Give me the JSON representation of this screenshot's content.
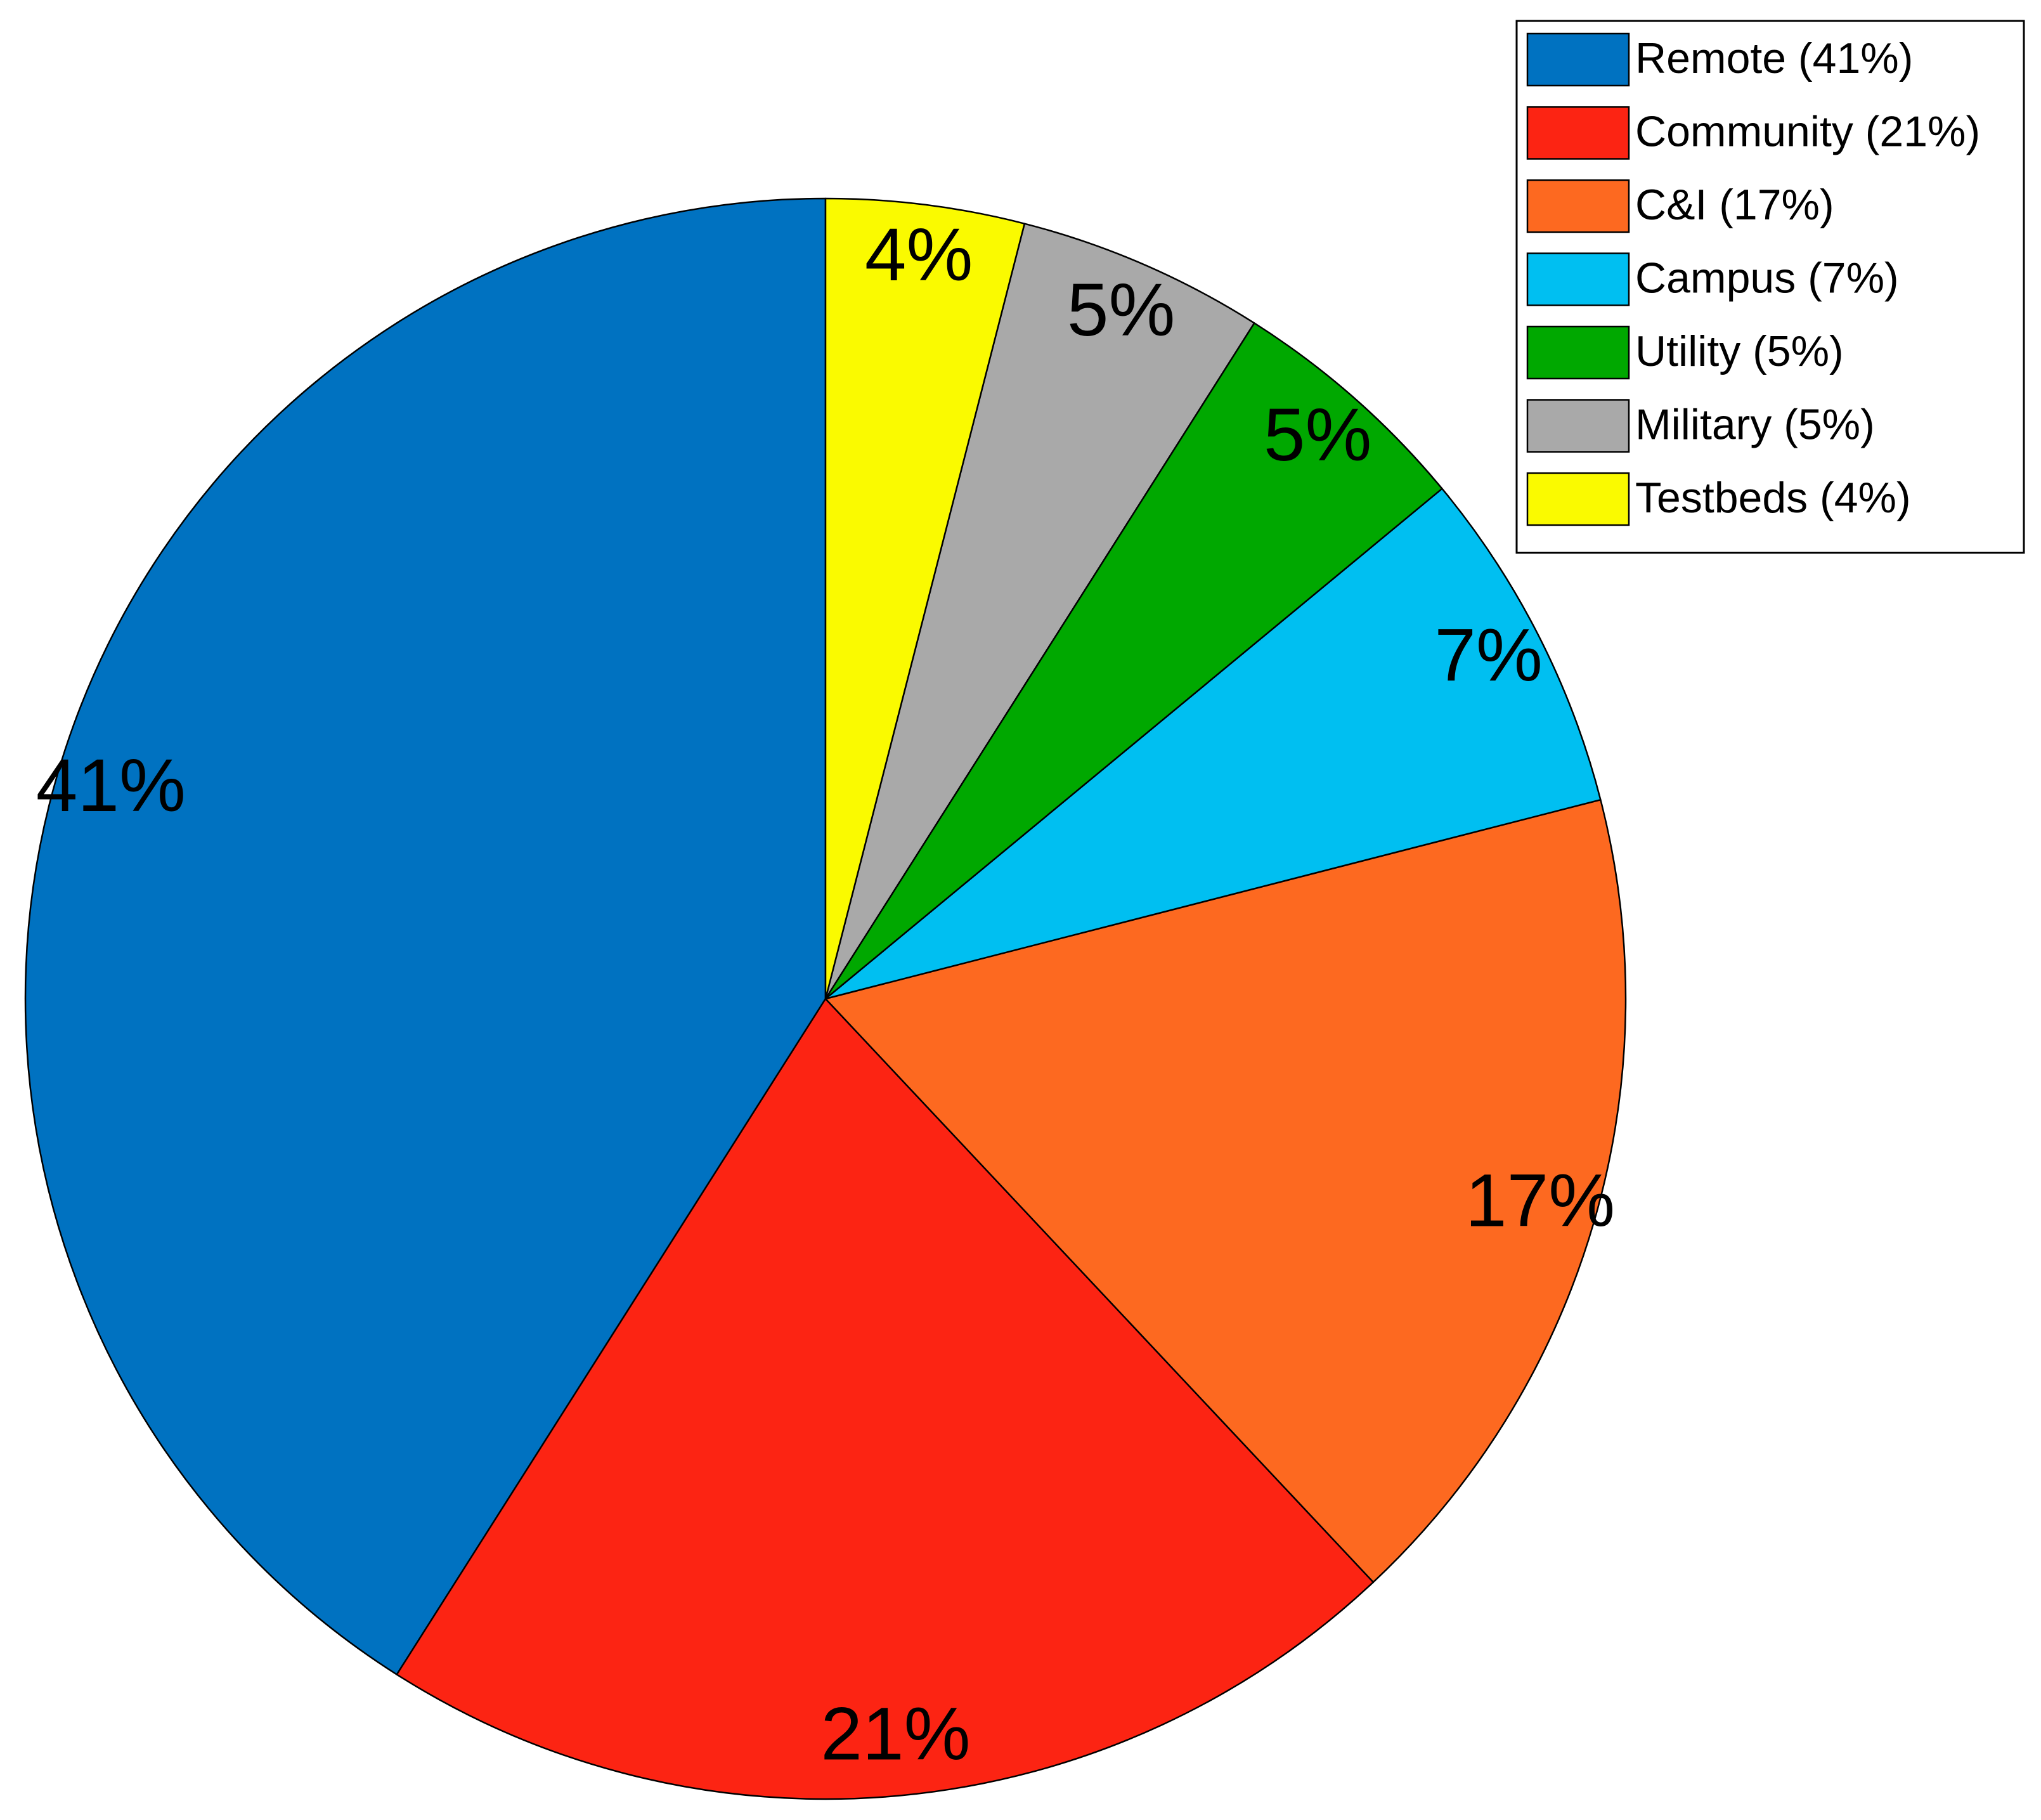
{
  "chart_data": {
    "type": "pie",
    "title": "",
    "start": "12 o'clock",
    "direction": "counterclockwise",
    "slices": [
      {
        "name": "Remote",
        "value": 41,
        "label": "41%",
        "legend_label": "Remote (41%)",
        "color": "#0072C1"
      },
      {
        "name": "Community",
        "value": 21,
        "label": "21%",
        "legend_label": "Community (21%)",
        "color": "#FC2413"
      },
      {
        "name": "C&I",
        "value": 17,
        "label": "17%",
        "legend_label": "C&I (17%)",
        "color": "#FD6920"
      },
      {
        "name": "Campus",
        "value": 7,
        "label": "7%",
        "legend_label": "Campus (7%)",
        "color": "#00BFF1"
      },
      {
        "name": "Utility",
        "value": 5,
        "label": "5%",
        "legend_label": "Utility (5%)",
        "color": "#00A800"
      },
      {
        "name": "Military",
        "value": 5,
        "label": "5%",
        "legend_label": "Military (5%)",
        "color": "#A9A9A9"
      },
      {
        "name": "Testbeds",
        "value": 4,
        "label": "4%",
        "legend_label": "Testbeds (4%)",
        "color": "#FAFA00"
      }
    ],
    "legend": {
      "position": "top-right"
    }
  }
}
